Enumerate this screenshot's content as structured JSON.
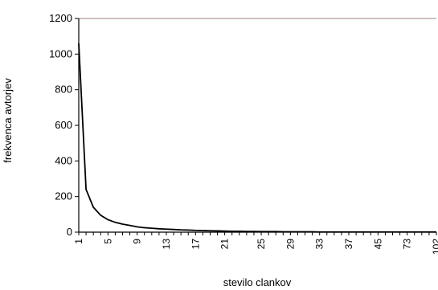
{
  "chart_data": {
    "type": "line",
    "title": "",
    "xlabel": "stevilo clankov",
    "ylabel": "frekvenca avtorjev",
    "ylim": [
      0,
      1200
    ],
    "yticks": [
      0,
      200,
      400,
      600,
      800,
      1000,
      1200
    ],
    "grid": true,
    "legend": "none",
    "x_tick_labels": [
      "1",
      "5",
      "9",
      "13",
      "17",
      "21",
      "25",
      "29",
      "33",
      "37",
      "45",
      "73",
      "102"
    ],
    "series": [
      {
        "color": "#000000",
        "x": [
          1,
          2,
          3,
          4,
          5,
          6,
          7,
          8,
          9,
          10,
          11,
          12,
          13,
          14,
          15,
          16,
          17,
          18,
          19,
          20,
          21,
          22,
          23,
          24,
          25,
          26,
          27,
          28,
          29,
          30,
          31,
          32,
          33,
          34,
          35,
          36,
          37,
          38,
          39,
          40,
          41,
          42,
          43,
          44,
          45,
          46,
          47,
          48,
          49,
          50
        ],
        "y": [
          1060,
          240,
          140,
          95,
          70,
          55,
          45,
          38,
          30,
          25,
          22,
          19,
          17,
          15,
          13,
          12,
          10,
          9,
          8,
          7,
          6,
          5,
          5,
          4,
          4,
          3,
          3,
          3,
          2,
          2,
          2,
          2,
          2,
          1,
          1,
          1,
          1,
          1,
          1,
          1,
          1,
          1,
          1,
          1,
          1,
          1,
          1,
          1,
          1,
          1
        ]
      }
    ]
  }
}
